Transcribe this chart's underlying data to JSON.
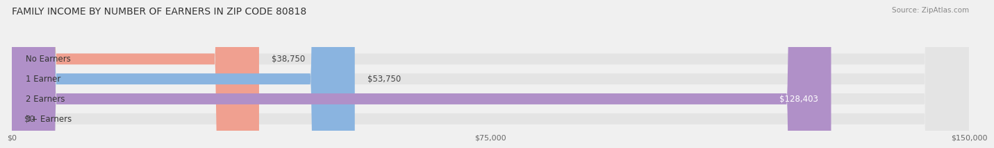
{
  "title": "FAMILY INCOME BY NUMBER OF EARNERS IN ZIP CODE 80818",
  "source": "Source: ZipAtlas.com",
  "categories": [
    "No Earners",
    "1 Earner",
    "2 Earners",
    "3+ Earners"
  ],
  "values": [
    38750,
    53750,
    128403,
    0
  ],
  "bar_colors": [
    "#f0a090",
    "#8ab4e0",
    "#b090c8",
    "#80d0d0"
  ],
  "label_colors": [
    "#555555",
    "#555555",
    "#ffffff",
    "#555555"
  ],
  "background_color": "#f0f0f0",
  "bar_bg_color": "#e4e4e4",
  "xlim": [
    0,
    150000
  ],
  "xticks": [
    0,
    75000,
    150000
  ],
  "xtick_labels": [
    "$0",
    "$75,000",
    "$150,000"
  ],
  "bar_height": 0.55,
  "title_fontsize": 10,
  "label_fontsize": 8.5,
  "value_fontsize": 8.5,
  "tick_fontsize": 8
}
